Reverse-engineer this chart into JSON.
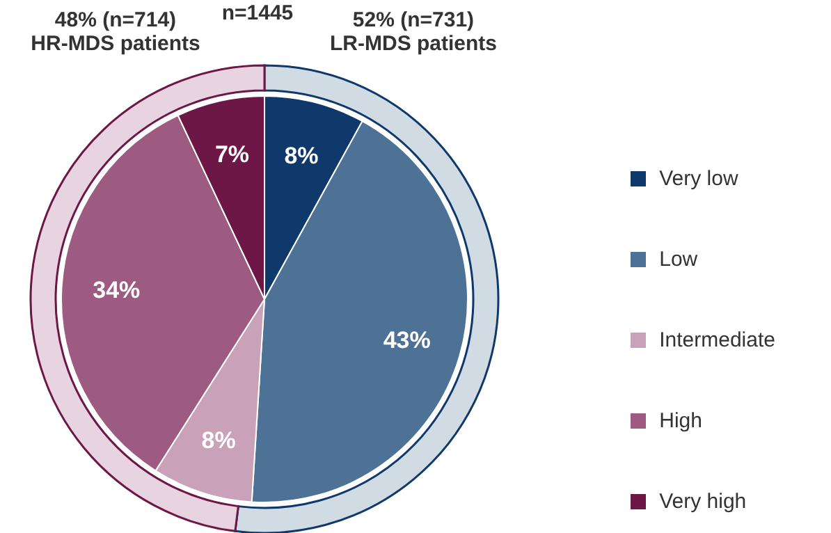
{
  "chart_data": [
    {
      "type": "donut",
      "title": "n=1445",
      "categories": [
        "LR-MDS patients",
        "HR-MDS patients"
      ],
      "values": [
        52,
        48
      ],
      "value_labels": [
        "52% (n=731)",
        "48% (n=714)"
      ],
      "colors": [
        "#d0dbe4",
        "#e8d4e0"
      ]
    },
    {
      "type": "pie",
      "categories": [
        "Very low",
        "Low",
        "Intermediate",
        "High",
        "Very high"
      ],
      "values": [
        8,
        43,
        8,
        34,
        7
      ],
      "colors": [
        "#0f386b",
        "#4e7296",
        "#c9a1b9",
        "#9d5b82",
        "#6d1747"
      ],
      "value_labels": [
        "8%",
        "43%",
        "8%",
        "34%",
        "7%"
      ],
      "legend": "right"
    }
  ]
}
